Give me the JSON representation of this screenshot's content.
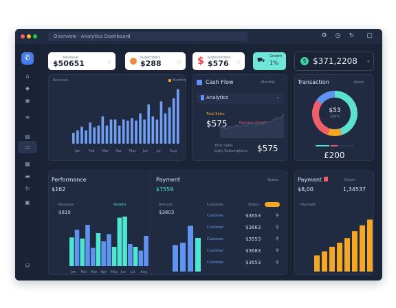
{
  "titlebar": {
    "title": "Overview · Analytics Dashboard",
    "dot_colors": [
      "#ff5f57",
      "#febc2e",
      "#28c840"
    ],
    "icons": [
      "gear-icon",
      "clock-icon",
      "refresh-icon",
      "window-icon"
    ]
  },
  "sidebar": {
    "icons": [
      "home-icon",
      "tag-icon",
      "globe-icon",
      "list-icon",
      "chart-icon",
      "folder-icon",
      "calendar-icon",
      "refresh-icon",
      "archive-icon",
      "database-icon"
    ]
  },
  "stats": [
    {
      "label": "Revenue",
      "value": "$50651",
      "icon": "heart-icon"
    },
    {
      "label": "Subscribers",
      "value": "$288",
      "icon": "heart-icon"
    },
    {
      "label": "Subscriptions",
      "value": "$576",
      "icon": "heart-icon"
    },
    {
      "label": "Growth",
      "value": "1%"
    }
  ],
  "balance": {
    "value": "$371,2208",
    "icon": "coin-icon"
  },
  "colors": {
    "accent": "#5f95f0",
    "teal": "#4ee6d3",
    "orange": "#f5a623",
    "pink": "#ef5f6a",
    "bg": "#1b2337"
  },
  "panel_top_left": {
    "title": "Revenue",
    "legend": "Monthly",
    "x_labels": [
      "Jan",
      "Feb",
      "Mar",
      "Apr",
      "May",
      "Jun",
      "Jul",
      "Aug"
    ]
  },
  "panel_top_mid": {
    "title": "Cash Flow",
    "dropdown": "Monthly",
    "sub_title": "Analytics",
    "small_label": "Total Sales",
    "main_value": "$575",
    "tag": "Earnings Growth",
    "footer_label_1": "Total Sales",
    "footer_label_2": "Daily Subscriptions",
    "footer_value": "$575"
  },
  "panel_top_right": {
    "title": "Transaction",
    "link": "Quick",
    "center_value": "$53",
    "center_sub": "100%",
    "bottom_value": "£200"
  },
  "panel_bottom_left": {
    "title": "Performance",
    "value": "$162",
    "small_label": "Revenue",
    "tag": "Growth",
    "sub_value": "$819",
    "x_labels": [
      "Jan",
      "Feb",
      "Mar",
      "Apr",
      "May",
      "Jun",
      "Jul",
      "Aug"
    ]
  },
  "panel_bottom_mid": {
    "title": "Payment",
    "value": "$7559",
    "dropdown": "Status",
    "col1_label": "Amount",
    "col1_value": "$3803",
    "col2_label": "Customer",
    "col3_label": "Status",
    "rows": [
      {
        "name": "Customer",
        "amount": "$3653"
      },
      {
        "name": "Customer",
        "amount": "$3663"
      },
      {
        "name": "Customer",
        "amount": "$3553"
      },
      {
        "name": "Customer",
        "amount": "$3683"
      },
      {
        "name": "Customer",
        "amount": "$3653"
      }
    ]
  },
  "panel_bottom_right": {
    "title": "Payment",
    "value": "$8,00",
    "value2": "1,34537",
    "small_label": "Payment",
    "button": "Export"
  },
  "chart_data": [
    {
      "type": "bar",
      "categories": [
        "Jan",
        "",
        "",
        "",
        "",
        "Feb",
        "",
        "",
        "Mar",
        "",
        "",
        "Apr",
        "",
        "",
        "May",
        "",
        "",
        "Jun",
        "",
        "",
        "Jul",
        "",
        "",
        "Aug",
        "",
        ""
      ],
      "values": [
        18,
        22,
        28,
        22,
        35,
        27,
        30,
        45,
        30,
        40,
        40,
        30,
        40,
        38,
        42,
        38,
        50,
        40,
        65,
        45,
        40,
        70,
        50,
        60,
        75,
        90
      ],
      "ylim": [
        0,
        100
      ],
      "color": "#6f9ef3"
    },
    {
      "type": "area",
      "values": [
        30,
        32,
        28,
        35,
        33,
        38,
        34,
        40,
        37,
        45,
        42,
        38,
        44,
        40,
        48,
        46,
        55,
        60,
        58,
        70
      ],
      "ylim": [
        0,
        100
      ]
    },
    {
      "type": "pie",
      "values": [
        45,
        10,
        30,
        15
      ],
      "colors": [
        "#5ee0cf",
        "#f5a623",
        "#ef5f6a",
        "#5f95f0"
      ]
    },
    {
      "type": "bar",
      "values": [
        52,
        66,
        50,
        75,
        33,
        60,
        45,
        58,
        35,
        88,
        90,
        40,
        35,
        28,
        55
      ],
      "colors": [
        "#4ee6d3",
        "#5f95f0",
        "#4ee6d3",
        "#5f95f0",
        "#5f95f0",
        "#4ee6d3",
        "#5f95f0",
        "#5f95f0",
        "#4ee6d3",
        "#4ee6d3",
        "#4ee6d3",
        "#5f95f0",
        "#4ee6d3",
        "#5f95f0",
        "#5f95f0"
      ],
      "ylim": [
        0,
        100
      ]
    },
    {
      "type": "bar",
      "values": [
        55,
        60,
        95,
        70
      ],
      "colors": [
        "#5f95f0",
        "#5f95f0",
        "#5f95f0",
        "#4ee6d3"
      ],
      "ylim": [
        0,
        100
      ]
    },
    {
      "type": "bar",
      "values": [
        28,
        35,
        43,
        50,
        58,
        70,
        80,
        90
      ],
      "colors": [
        "#f5a623"
      ],
      "ylim": [
        0,
        100
      ]
    }
  ]
}
